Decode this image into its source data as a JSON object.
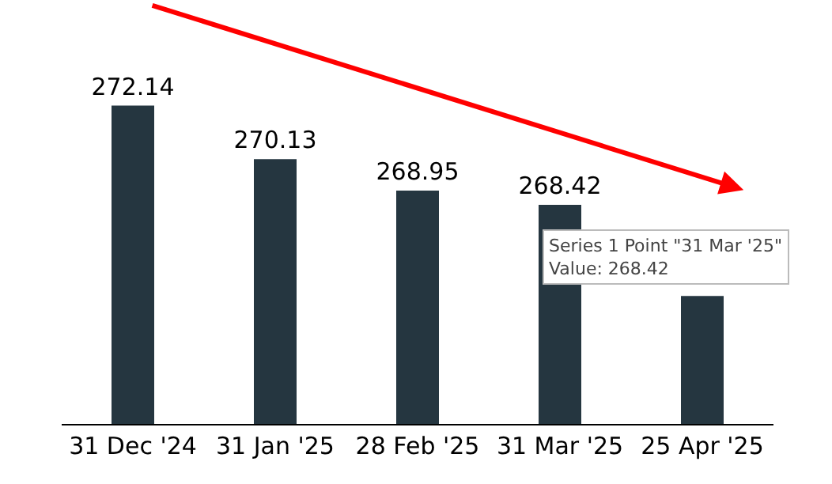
{
  "chart_data": {
    "type": "bar",
    "categories": [
      "31 Dec '24",
      "31 Jan '25",
      "28 Feb '25",
      "31 Mar '25",
      "25 Apr '25"
    ],
    "values": [
      272.14,
      270.13,
      268.95,
      268.42,
      265.0
    ],
    "value_labels": [
      "272.14",
      "270.13",
      "268.95",
      "268.42",
      null
    ],
    "color": "#253640",
    "ylim": [
      260.2,
      276.1
    ],
    "tick_labels": "x",
    "legend": false,
    "annotations": [
      "Series 1 Point \"31 Mar '25\"\nValue: 268.42"
    ]
  }
}
